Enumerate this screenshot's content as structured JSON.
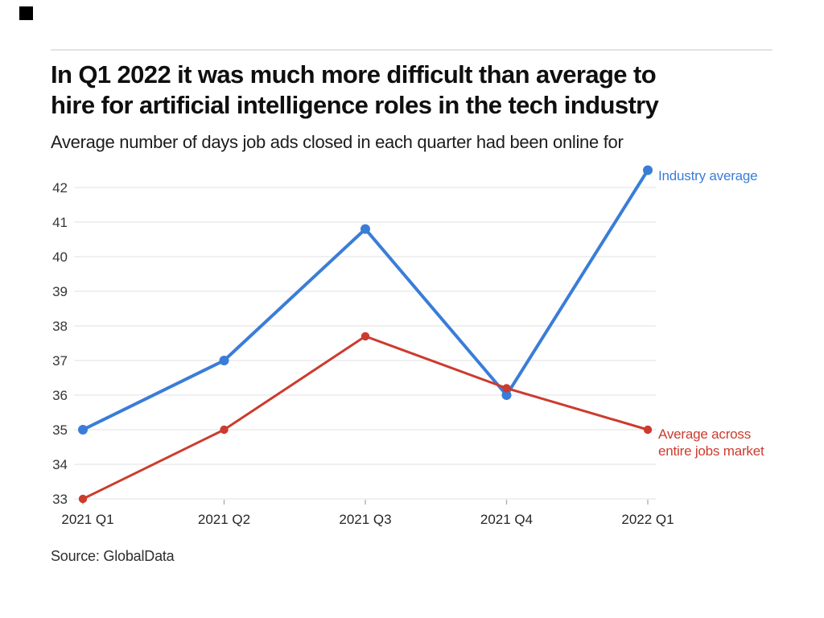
{
  "brand": {
    "square_color": "#000000"
  },
  "header": {
    "title": "In Q1 2022 it was much more difficult than average to hire for artificial intelligence roles in the tech industry",
    "title_lines": [
      "In Q1 2022 it was much more difficult than average to",
      "hire for artificial intelligence roles in the tech industry"
    ],
    "subtitle": "Average number of days job ads closed in each quarter had been online for"
  },
  "source": {
    "label": "Source: GlobalData"
  },
  "chart_data": {
    "type": "line",
    "title": "Average number of days job ads closed in each quarter had been online for",
    "categories": [
      "2021 Q1",
      "2021 Q2",
      "2021 Q3",
      "2021 Q4",
      "2022 Q1"
    ],
    "series": [
      {
        "name": "Industry average",
        "color": "#3a7dd8",
        "values": [
          35,
          37,
          40.8,
          36,
          42.5
        ]
      },
      {
        "name": "Average across entire jobs market",
        "color": "#cc3b2e",
        "values": [
          33,
          35,
          37.7,
          36.2,
          35
        ]
      }
    ],
    "xlabel": "",
    "ylabel": "",
    "ylim": [
      33,
      42.6
    ],
    "y_ticks": [
      33,
      34,
      35,
      36,
      37,
      38,
      39,
      40,
      41,
      42
    ],
    "grid": true,
    "gridline_color": "#e8e8e8",
    "axis_tick_color": "#ababab",
    "tick_label_color": "#353535",
    "legend_position": "right-of-line-ends"
  }
}
